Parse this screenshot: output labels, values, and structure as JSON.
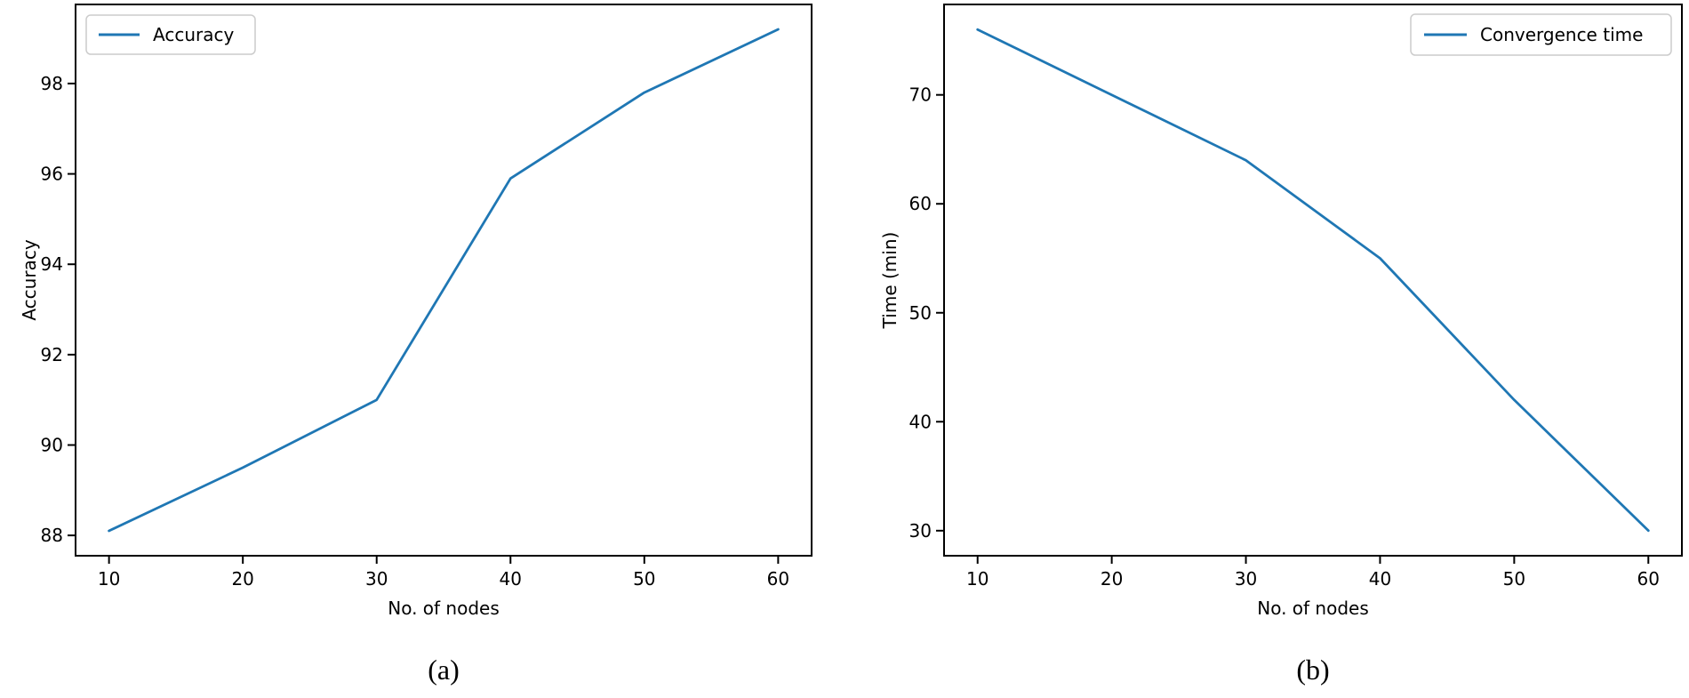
{
  "figure": {
    "line_color": "#1f77b4",
    "spine_color": "#000000",
    "legend_border_color": "#cccccc",
    "background_color": "#ffffff"
  },
  "chart_data": [
    {
      "id": "a",
      "type": "line",
      "caption": "(a)",
      "xlabel": "No. of nodes",
      "ylabel": "Accuracy",
      "legend": {
        "label": "Accuracy",
        "position": "upper left"
      },
      "x": [
        10,
        20,
        30,
        40,
        50,
        60
      ],
      "series": [
        {
          "name": "Accuracy",
          "values": [
            88.1,
            89.5,
            91.0,
            95.9,
            97.8,
            99.2
          ]
        }
      ],
      "x_ticks": [
        10,
        20,
        30,
        40,
        50,
        60
      ],
      "y_ticks": [
        88,
        90,
        92,
        94,
        96,
        98
      ],
      "xlim": [
        7.5,
        62.5
      ],
      "ylim": [
        87.55,
        99.75
      ],
      "grid": false
    },
    {
      "id": "b",
      "type": "line",
      "caption": "(b)",
      "xlabel": "No. of nodes",
      "ylabel": "Time (min)",
      "legend": {
        "label": "Convergence time",
        "position": "upper right"
      },
      "x": [
        10,
        20,
        30,
        40,
        50,
        60
      ],
      "series": [
        {
          "name": "Convergence time",
          "values": [
            76,
            70,
            64,
            55,
            42,
            30
          ]
        }
      ],
      "x_ticks": [
        10,
        20,
        30,
        40,
        50,
        60
      ],
      "y_ticks": [
        30,
        40,
        50,
        60,
        70
      ],
      "xlim": [
        7.5,
        62.5
      ],
      "ylim": [
        27.7,
        78.3
      ],
      "grid": false
    }
  ]
}
